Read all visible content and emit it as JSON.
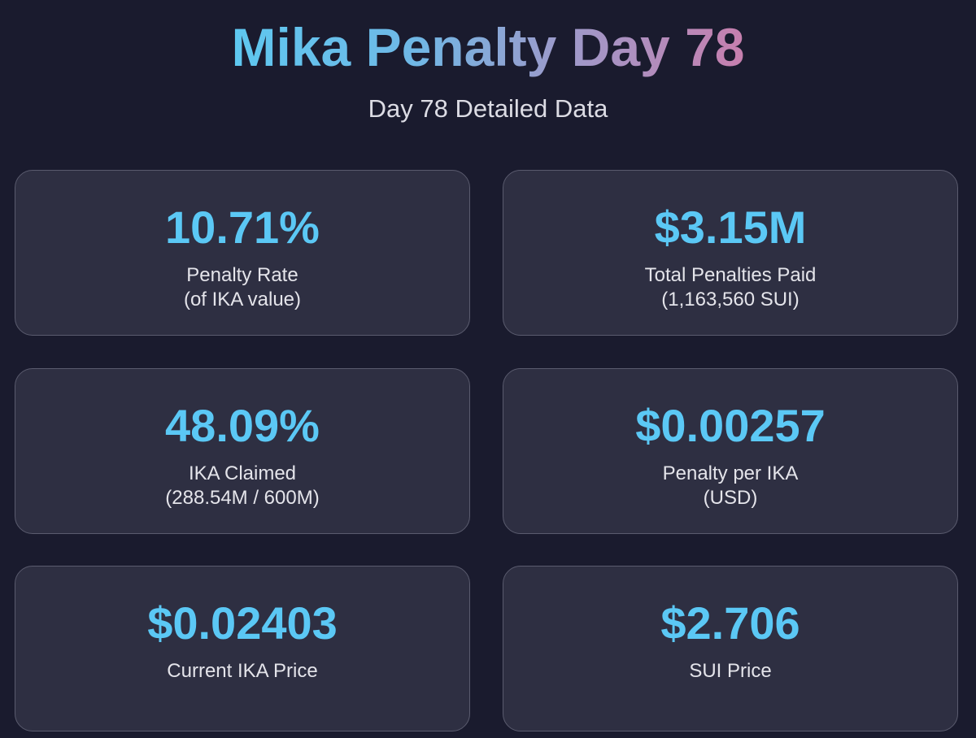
{
  "header": {
    "title": "Mika Penalty Day 78",
    "subtitle": "Day 78 Detailed Data"
  },
  "colors": {
    "background": "#1a1b2e",
    "card_background": "#2e2f42",
    "card_border": "#5a5b6e",
    "value_accent": "#5bc8f5",
    "title_gradient_start": "#5ec8f0",
    "title_gradient_end": "#c77fae"
  },
  "cards": [
    {
      "value": "10.71%",
      "label": "Penalty Rate",
      "sublabel": "(of IKA value)"
    },
    {
      "value": "$3.15M",
      "label": "Total Penalties Paid",
      "sublabel": "(1,163,560 SUI)"
    },
    {
      "value": "48.09%",
      "label": "IKA Claimed",
      "sublabel": "(288.54M / 600M)"
    },
    {
      "value": "$0.00257",
      "label": "Penalty per IKA",
      "sublabel": "(USD)"
    },
    {
      "value": "$0.02403",
      "label": "Current IKA Price",
      "sublabel": ""
    },
    {
      "value": "$2.706",
      "label": "SUI Price",
      "sublabel": ""
    }
  ]
}
